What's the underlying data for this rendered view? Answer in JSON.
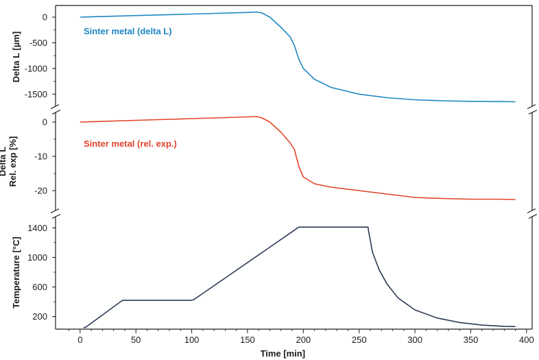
{
  "colors": {
    "delta_l": "#1f87c3",
    "rel_exp": "#e2432a",
    "temperature": "#2b3a55",
    "axis": "#1a1a1a"
  },
  "chart_data": [
    {
      "type": "line",
      "panel": "top",
      "ylabel": "Delta L [µm]",
      "ylim": [
        -1750,
        200
      ],
      "yticks": [
        0,
        -500,
        -1000,
        -1500
      ],
      "ytick_labels": [
        "0",
        "-500",
        "-1000",
        "-1500"
      ],
      "series": [
        {
          "name": "Sinter metal (delta L)",
          "x": [
            0,
            50,
            100,
            150,
            158,
            163,
            170,
            180,
            188,
            192,
            196,
            200,
            210,
            225,
            250,
            275,
            300,
            325,
            350,
            375,
            390
          ],
          "y": [
            0,
            30,
            60,
            90,
            100,
            80,
            0,
            -200,
            -380,
            -550,
            -820,
            -1000,
            -1210,
            -1370,
            -1500,
            -1570,
            -1610,
            -1630,
            -1640,
            -1645,
            -1650
          ]
        }
      ]
    },
    {
      "type": "line",
      "panel": "middle",
      "ylabel": "Delta L\nRel. exp [%]",
      "ylim": [
        -26,
        3
      ],
      "yticks": [
        0,
        -10,
        -20
      ],
      "ytick_labels": [
        "0",
        "-10",
        "-20"
      ],
      "series": [
        {
          "name": "Sinter metal (rel. exp.)",
          "x": [
            0,
            50,
            100,
            150,
            158,
            163,
            170,
            180,
            188,
            192,
            196,
            200,
            210,
            225,
            250,
            275,
            300,
            325,
            350,
            375,
            390
          ],
          "y": [
            0,
            0.5,
            1.0,
            1.5,
            1.6,
            1.2,
            0,
            -3,
            -6,
            -8,
            -13,
            -16,
            -18,
            -19,
            -20,
            -21,
            -22,
            -22.3,
            -22.5,
            -22.5,
            -22.6
          ]
        }
      ]
    },
    {
      "type": "line",
      "panel": "bottom",
      "ylabel": "Temperature [°C]",
      "xlabel": "Time [min]",
      "ylim": [
        30,
        1560
      ],
      "yticks": [
        200,
        600,
        1000,
        1400
      ],
      "ytick_labels": [
        "200",
        "600",
        "1000",
        "1400"
      ],
      "xlim": [
        -22,
        405
      ],
      "xticks": [
        0,
        50,
        100,
        150,
        200,
        250,
        300,
        350,
        400
      ],
      "xtick_labels": [
        "0",
        "50",
        "100",
        "150",
        "200",
        "250",
        "300",
        "350",
        "400"
      ],
      "series": [
        {
          "name": "",
          "x": [
            3,
            5,
            38,
            100,
            102,
            196,
            258,
            258.5,
            262,
            268,
            275,
            285,
            300,
            320,
            340,
            360,
            380,
            390
          ],
          "y": [
            50,
            55,
            420,
            420,
            430,
            1410,
            1410,
            1350,
            1070,
            830,
            640,
            450,
            290,
            180,
            120,
            85,
            68,
            65
          ]
        }
      ]
    }
  ]
}
